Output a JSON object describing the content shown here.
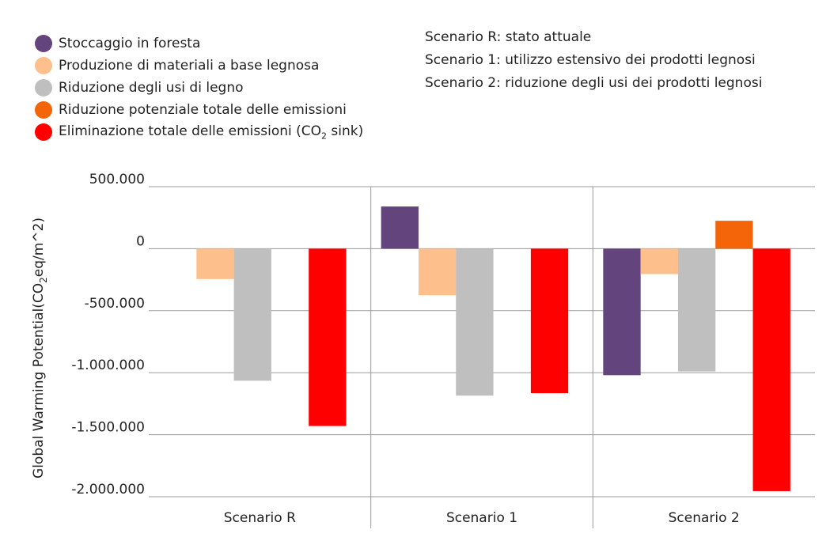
{
  "legend": [
    {
      "label": "Stoccaggio in foresta",
      "color": "#63447d"
    },
    {
      "label": "Produzione di materiali a base legnosa",
      "color": "#fdbf8c"
    },
    {
      "label": "Riduzione degli usi di legno",
      "color": "#bfbfbf"
    },
    {
      "label": "Riduzione potenziale totale delle emissioni",
      "color": "#f4650a"
    },
    {
      "label": "Eliminazione totale delle emissioni (CO",
      "label_sub": "2",
      "label_after": " sink)",
      "color": "#fe0000"
    }
  ],
  "scenario_notes": [
    "Scenario R: stato attuale",
    "Scenario 1: utilizzo estensivo dei prodotti legnosi",
    "Scenario 2: riduzione degli usi dei prodotti legnosi"
  ],
  "chart_data": {
    "type": "bar",
    "categories": [
      "Scenario R",
      "Scenario 1",
      "Scenario 2"
    ],
    "series": [
      {
        "name": "Stoccaggio in foresta",
        "color": "#63447d",
        "values": [
          0,
          340000,
          -1020000
        ]
      },
      {
        "name": "Produzione di materiali a base legnosa",
        "color": "#fdbf8c",
        "values": [
          -245000,
          -375000,
          -205000
        ]
      },
      {
        "name": "Riduzione degli usi di legno",
        "color": "#bfbfbf",
        "values": [
          -1065000,
          -1185000,
          -990000
        ]
      },
      {
        "name": "Riduzione potenziale totale delle emissioni",
        "color": "#f4650a",
        "values": [
          0,
          0,
          225000
        ]
      },
      {
        "name": "Eliminazione totale delle emissioni (CO2 sink)",
        "color": "#fe0000",
        "values": [
          -1430000,
          -1165000,
          -1955000
        ]
      }
    ],
    "ylabel": "Global Warming Potential(CO2eq/m^2)",
    "ylabel_parts": {
      "before": "Global Warming Potential(CO",
      "sub": "2",
      "after": "eq/m^2)"
    },
    "ylim": [
      -2000000,
      500000
    ],
    "yticks": [
      500000,
      0,
      -500000,
      -1000000,
      -1500000,
      -2000000
    ],
    "ytick_labels": [
      "500.000",
      "0",
      "-500.000",
      "-1.000.000",
      "-1.500.000",
      "-2.000.000"
    ],
    "grid": true,
    "legend_position": "top-left"
  }
}
